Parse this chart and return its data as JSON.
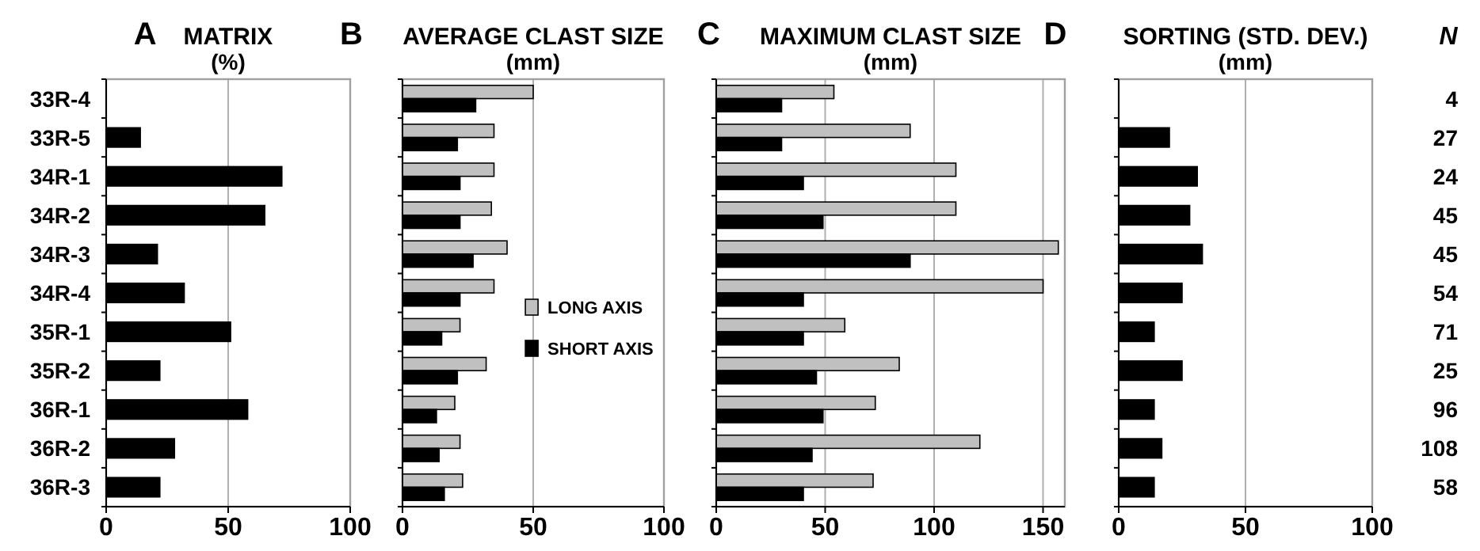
{
  "chart_data": [
    {
      "type": "bar",
      "orientation": "horizontal",
      "title": "MATRIX",
      "subtitle": "(%)",
      "annotations": [
        "A"
      ],
      "categories": [
        "33R-4",
        "33R-5",
        "34R-1",
        "34R-2",
        "34R-3",
        "34R-4",
        "35R-1",
        "35R-2",
        "36R-1",
        "36R-2",
        "36R-3"
      ],
      "values": [
        null,
        14,
        72,
        65,
        21,
        32,
        51,
        22,
        58,
        28,
        22
      ],
      "color": "#000000",
      "xlim": [
        0,
        100
      ],
      "xticks": [
        0,
        50,
        100
      ],
      "grid": "x"
    },
    {
      "type": "bar",
      "orientation": "horizontal",
      "title": "AVERAGE CLAST SIZE",
      "subtitle": "(mm)",
      "annotations": [
        "B"
      ],
      "tick_labels": "x",
      "series": [
        {
          "name": "LONG AXIS",
          "color": "#c0c0c0",
          "values": [
            50,
            35,
            35,
            34,
            40,
            35,
            22,
            32,
            20,
            22,
            23
          ]
        },
        {
          "name": "SHORT AXIS",
          "color": "#000000",
          "values": [
            28,
            21,
            22,
            22,
            27,
            22,
            15,
            21,
            13,
            14,
            16
          ]
        }
      ],
      "xlim": [
        0,
        100
      ],
      "xticks": [
        0,
        50,
        100
      ],
      "grid": "x",
      "legend": "right"
    },
    {
      "type": "bar",
      "orientation": "horizontal",
      "title": "MAXIMUM CLAST SIZE",
      "subtitle": "(mm)",
      "annotations": [
        "C"
      ],
      "tick_labels": "x",
      "series": [
        {
          "color": "#c0c0c0",
          "values": [
            54,
            89,
            110,
            110,
            157,
            150,
            59,
            84,
            73,
            121,
            72
          ]
        },
        {
          "color": "#000000",
          "values": [
            30,
            30,
            40,
            49,
            89,
            40,
            40,
            46,
            49,
            44,
            40
          ]
        }
      ],
      "xlim": [
        0,
        160
      ],
      "xticks": [
        0,
        50,
        100,
        150
      ],
      "grid": "x"
    },
    {
      "type": "bar",
      "orientation": "horizontal",
      "title": "SORTING (STD. DEV.)",
      "subtitle": "(mm)",
      "annotations": [
        "D"
      ],
      "tick_labels": "x",
      "values": [
        null,
        20,
        31,
        28,
        33,
        25,
        14,
        25,
        14,
        17,
        14
      ],
      "color": "#000000",
      "xlim": [
        0,
        100
      ],
      "xticks": [
        0,
        50,
        100
      ],
      "grid": "x"
    },
    {
      "type": "other",
      "title": "N",
      "values": [
        4,
        27,
        24,
        45,
        45,
        54,
        71,
        25,
        96,
        108,
        58
      ],
      "data_labels": true
    }
  ]
}
